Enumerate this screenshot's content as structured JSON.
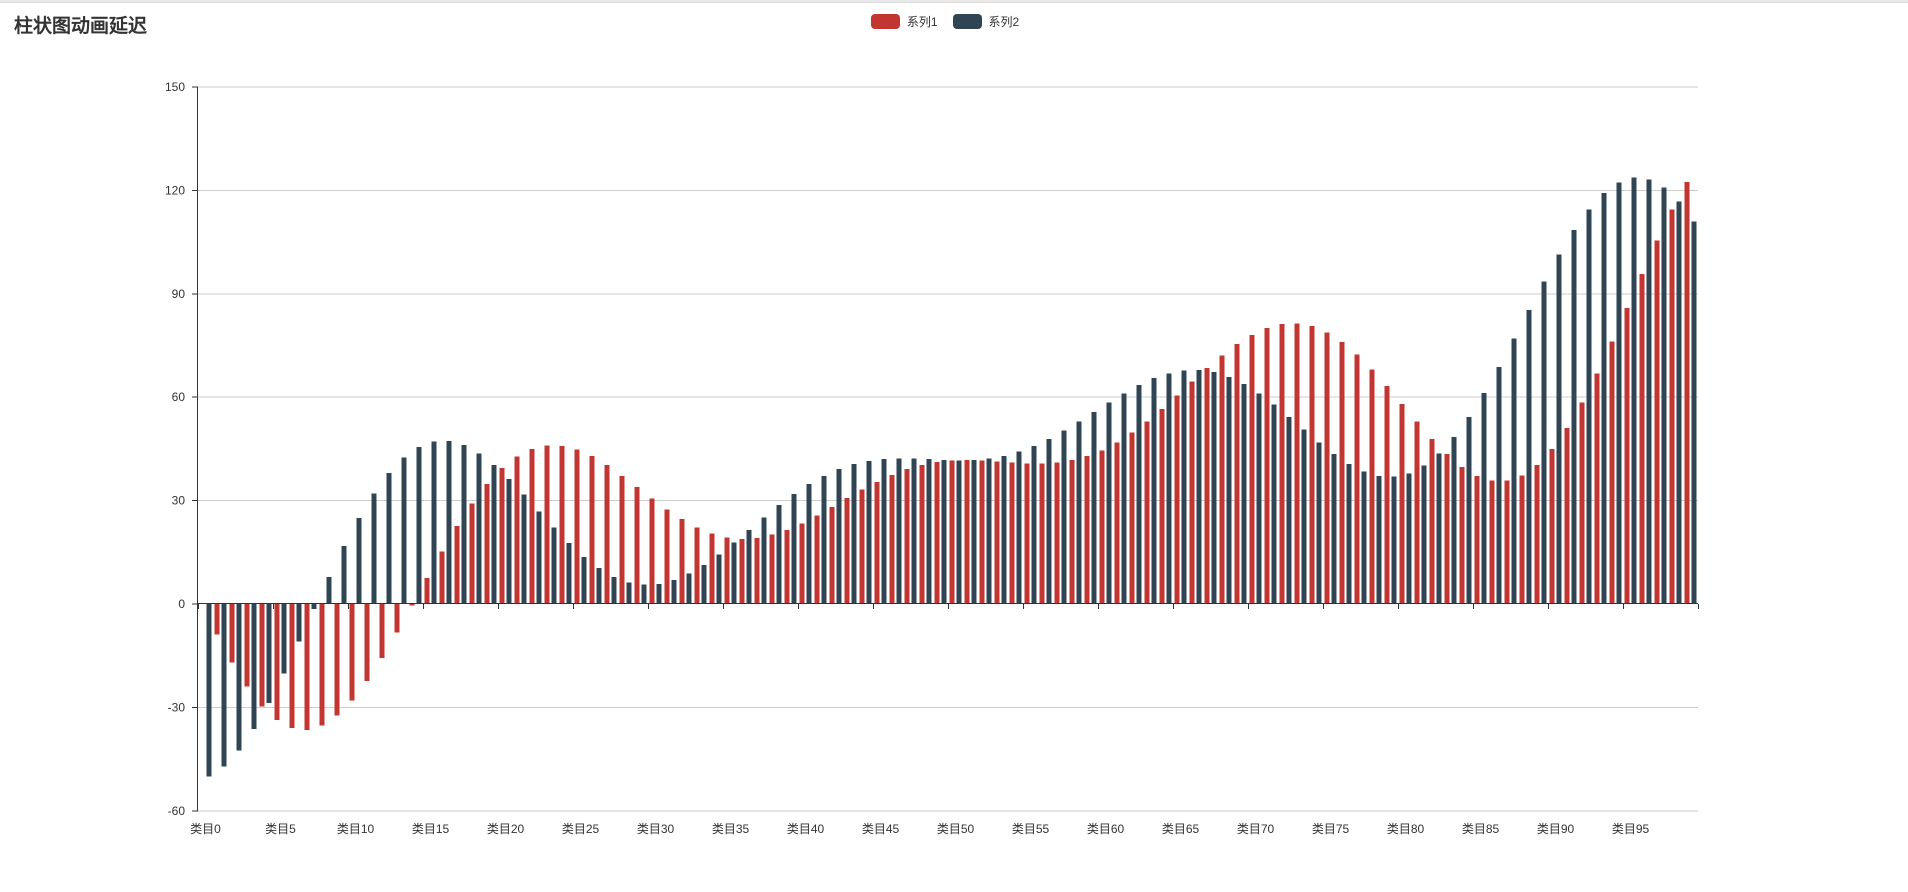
{
  "header": {
    "title": "柱状图动画延迟"
  },
  "legend": {
    "items": [
      {
        "label": "系列1",
        "color": "#c23531"
      },
      {
        "label": "系列2",
        "color": "#2f4554"
      }
    ]
  },
  "chart_data": {
    "type": "bar",
    "title": "柱状图动画延迟",
    "legend_position": "top-center",
    "grid": true,
    "grid_color": "#cccccc",
    "axis_color": "#333333",
    "label_color": "#333333",
    "ylim": [
      -60,
      150
    ],
    "ytick_step": 30,
    "yticks": [
      150,
      120,
      90,
      60,
      30,
      0,
      -30,
      -60
    ],
    "y_axis_labels": [
      "150",
      "120",
      "90",
      "60",
      "30",
      "0",
      "-30",
      "-60"
    ],
    "x_label_interval": 5,
    "x_axis_labels_shown": [
      "类目0",
      "类目5",
      "类目10",
      "类目15",
      "类目20",
      "类目25",
      "类目30",
      "类目35",
      "类目40",
      "类目45",
      "类目50",
      "类目55",
      "类目60",
      "类目65",
      "类目70",
      "类目75",
      "类目80",
      "类目85",
      "类目90",
      "类目95"
    ],
    "categories": [
      "类目0",
      "类目1",
      "类目2",
      "类目3",
      "类目4",
      "类目5",
      "类目6",
      "类目7",
      "类目8",
      "类目9",
      "类目10",
      "类目11",
      "类目12",
      "类目13",
      "类目14",
      "类目15",
      "类目16",
      "类目17",
      "类目18",
      "类目19",
      "类目20",
      "类目21",
      "类目22",
      "类目23",
      "类目24",
      "类目25",
      "类目26",
      "类目27",
      "类目28",
      "类目29",
      "类目30",
      "类目31",
      "类目32",
      "类目33",
      "类目34",
      "类目35",
      "类目36",
      "类目37",
      "类目38",
      "类目39",
      "类目40",
      "类目41",
      "类目42",
      "类目43",
      "类目44",
      "类目45",
      "类目46",
      "类目47",
      "类目48",
      "类目49",
      "类目50",
      "类目51",
      "类目52",
      "类目53",
      "类目54",
      "类目55",
      "类目56",
      "类目57",
      "类目58",
      "类目59",
      "类目60",
      "类目61",
      "类目62",
      "类目63",
      "类目64",
      "类目65",
      "类目66",
      "类目67",
      "类目68",
      "类目69",
      "类目70",
      "类目71",
      "类目72",
      "类目73",
      "类目74",
      "类目75",
      "类目76",
      "类目77",
      "类目78",
      "类目79",
      "类目80",
      "类目81",
      "类目82",
      "类目83",
      "类目84",
      "类目85",
      "类目86",
      "类目87",
      "类目88",
      "类目89",
      "类目90",
      "类目91",
      "类目92",
      "类目93",
      "类目94",
      "类目95",
      "类目96",
      "类目97",
      "类目98",
      "类目99"
    ],
    "series": [
      {
        "name": "系列1",
        "color": "#c23531",
        "values": [
          0,
          -8.9,
          -17.0,
          -24.0,
          -29.7,
          -33.7,
          -36.0,
          -36.5,
          -35.3,
          -32.4,
          -28.0,
          -22.4,
          -15.7,
          -8.2,
          -0.4,
          7.6,
          15.3,
          22.6,
          29.2,
          34.8,
          39.4,
          42.8,
          45.0,
          46.0,
          45.9,
          44.8,
          42.9,
          40.3,
          37.2,
          33.9,
          30.6,
          27.4,
          24.6,
          22.2,
          20.4,
          19.3,
          18.9,
          19.2,
          20.1,
          21.5,
          23.4,
          25.7,
          28.2,
          30.7,
          33.2,
          35.4,
          37.4,
          39.1,
          40.3,
          41.2,
          41.7,
          41.8,
          41.7,
          41.4,
          41.1,
          40.8,
          40.8,
          41.1,
          41.8,
          42.9,
          44.6,
          46.9,
          49.7,
          52.9,
          56.6,
          60.5,
          64.5,
          68.4,
          72.1,
          75.4,
          78.1,
          80.1,
          81.2,
          81.4,
          80.6,
          78.8,
          76.0,
          72.4,
          68.0,
          63.2,
          58.0,
          52.9,
          47.9,
          43.5,
          39.8,
          37.2,
          35.8,
          35.8,
          37.3,
          40.3,
          45.0,
          51.0,
          58.4,
          66.9,
          76.2,
          85.9,
          95.8,
          105.4,
          114.4,
          122.4
        ]
      },
      {
        "name": "系列2",
        "color": "#2f4554",
        "values": [
          -50.0,
          -47.2,
          -42.5,
          -36.3,
          -28.7,
          -20.1,
          -10.9,
          -1.5,
          7.9,
          16.8,
          25.0,
          32.1,
          38.0,
          42.5,
          45.6,
          47.1,
          47.3,
          46.1,
          43.7,
          40.4,
          36.3,
          31.7,
          26.9,
          22.2,
          17.7,
          13.7,
          10.4,
          7.9,
          6.3,
          5.6,
          5.8,
          6.9,
          8.8,
          11.3,
          14.4,
          17.9,
          21.5,
          25.1,
          28.7,
          31.9,
          34.8,
          37.2,
          39.2,
          40.6,
          41.5,
          42.1,
          42.2,
          42.2,
          42.0,
          41.8,
          41.7,
          41.8,
          42.2,
          43.0,
          44.2,
          45.9,
          47.9,
          50.3,
          52.9,
          55.7,
          58.4,
          61.1,
          63.5,
          65.5,
          66.9,
          67.8,
          67.9,
          67.3,
          65.9,
          63.8,
          61.1,
          57.9,
          54.3,
          50.6,
          46.9,
          43.5,
          40.6,
          38.4,
          37.2,
          37.0,
          37.9,
          40.2,
          43.7,
          48.5,
          54.3,
          61.2,
          68.8,
          77.0,
          85.3,
          93.6,
          101.4,
          108.5,
          114.5,
          119.2,
          122.3,
          123.7,
          123.2,
          120.9,
          116.8,
          111.0
        ]
      }
    ]
  }
}
